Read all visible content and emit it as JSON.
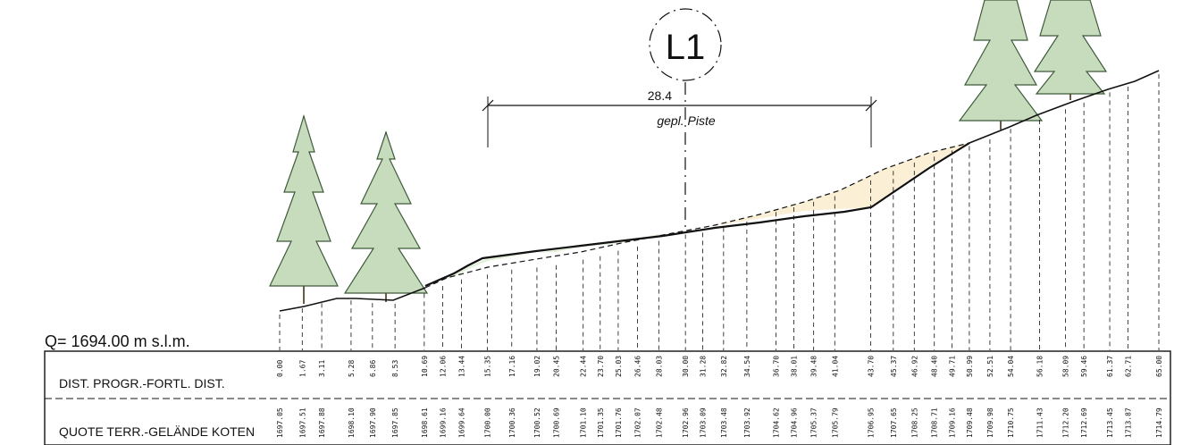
{
  "section": {
    "id": "L1",
    "datum_label": "Q=  1694.00  m  s.l.m.",
    "width_value": "28.4",
    "width_label": "gepl. Piste"
  },
  "rows": {
    "distance_label": "DIST. PROGR.-FORTL. DIST.",
    "elevation_label": "QUOTE TERR.-GELÄNDE KOTEN"
  },
  "stations": [
    {
      "d": "0.00",
      "z": "1697.05"
    },
    {
      "d": "1.67",
      "z": "1697.51"
    },
    {
      "d": "3.11",
      "z": "1697.88"
    },
    {
      "d": "5.28",
      "z": "1698.10"
    },
    {
      "d": "6.86",
      "z": "1697.90"
    },
    {
      "d": "8.53",
      "z": "1697.85"
    },
    {
      "d": "10.69",
      "z": "1698.61"
    },
    {
      "d": "12.06",
      "z": "1699.16"
    },
    {
      "d": "13.44",
      "z": "1699.64"
    },
    {
      "d": "15.35",
      "z": "1700.00"
    },
    {
      "d": "17.16",
      "z": "1700.36"
    },
    {
      "d": "19.02",
      "z": "1700.52"
    },
    {
      "d": "20.45",
      "z": "1700.69"
    },
    {
      "d": "22.44",
      "z": "1701.10"
    },
    {
      "d": "23.70",
      "z": "1701.35"
    },
    {
      "d": "25.03",
      "z": "1701.76"
    },
    {
      "d": "26.46",
      "z": "1702.07"
    },
    {
      "d": "28.03",
      "z": "1702.48"
    },
    {
      "d": "30.00",
      "z": "1702.96"
    },
    {
      "d": "31.28",
      "z": "1703.09"
    },
    {
      "d": "32.82",
      "z": "1703.48"
    },
    {
      "d": "34.54",
      "z": "1703.92"
    },
    {
      "d": "36.70",
      "z": "1704.62"
    },
    {
      "d": "38.01",
      "z": "1704.96"
    },
    {
      "d": "39.48",
      "z": "1705.37"
    },
    {
      "d": "41.04",
      "z": "1705.79"
    },
    {
      "d": "43.70",
      "z": "1706.95"
    },
    {
      "d": "45.37",
      "z": "1707.65"
    },
    {
      "d": "46.92",
      "z": "1708.25"
    },
    {
      "d": "48.40",
      "z": "1708.71"
    },
    {
      "d": "49.71",
      "z": "1709.16"
    },
    {
      "d": "50.99",
      "z": "1709.48"
    },
    {
      "d": "52.51",
      "z": "1709.98"
    },
    {
      "d": "54.04",
      "z": "1710.75"
    },
    {
      "d": "56.18",
      "z": "1711.43"
    },
    {
      "d": "58.09",
      "z": "1712.20"
    },
    {
      "d": "59.46",
      "z": "1712.69"
    },
    {
      "d": "61.37",
      "z": "1713.45"
    },
    {
      "d": "62.71",
      "z": "1713.87"
    },
    {
      "d": "65.00",
      "z": "1714.79"
    }
  ]
}
